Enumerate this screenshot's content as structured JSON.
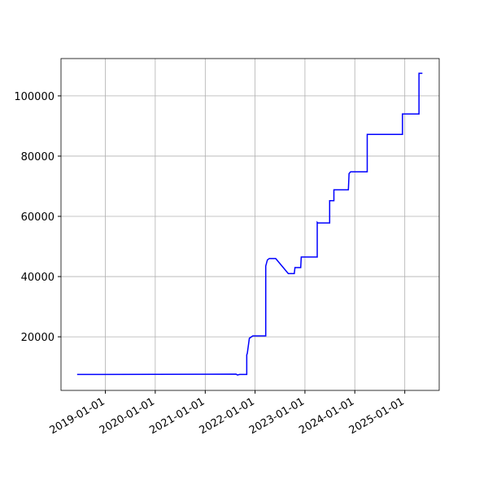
{
  "chart_data": {
    "type": "line",
    "x": [
      "2018-06-08",
      "2021-08-15",
      "2021-08-25",
      "2021-09-10",
      "2021-11-01",
      "2021-11-01",
      "2021-11-05",
      "2021-11-20",
      "2021-12-15",
      "2022-03-20",
      "2022-03-20",
      "2022-04-01",
      "2022-04-15",
      "2022-06-01",
      "2022-09-01",
      "2022-10-15",
      "2022-10-20",
      "2022-12-01",
      "2022-12-05",
      "2023-04-01",
      "2023-04-01",
      "2023-04-05",
      "2023-07-01",
      "2023-07-01",
      "2023-08-01",
      "2023-08-01",
      "2023-11-15",
      "2023-11-20",
      "2023-12-01",
      "2024-04-01",
      "2024-04-01",
      "2024-12-15",
      "2024-12-15",
      "2025-04-15",
      "2025-04-15",
      "2025-05-10"
    ],
    "series": [
      {
        "color": "#0000ff",
        "values": [
          7500,
          7600,
          7300,
          7500,
          7500,
          14000,
          14500,
          19500,
          20300,
          20300,
          43500,
          45500,
          46000,
          46000,
          41000,
          41000,
          43000,
          43000,
          46500,
          46500,
          58000,
          57800,
          57800,
          65200,
          65200,
          68800,
          68800,
          74200,
          74800,
          74800,
          87200,
          87200,
          94000,
          94000,
          107500,
          107500
        ]
      }
    ],
    "xlim": [
      "2018-02-10",
      "2025-09-10"
    ],
    "xticks": [
      "2019-01-01",
      "2020-01-01",
      "2021-01-01",
      "2022-01-01",
      "2023-01-01",
      "2024-01-01",
      "2025-01-01"
    ],
    "ylim": [
      2200,
      112400
    ],
    "yticks": [
      20000,
      40000,
      60000,
      80000,
      100000
    ],
    "grid": true
  }
}
